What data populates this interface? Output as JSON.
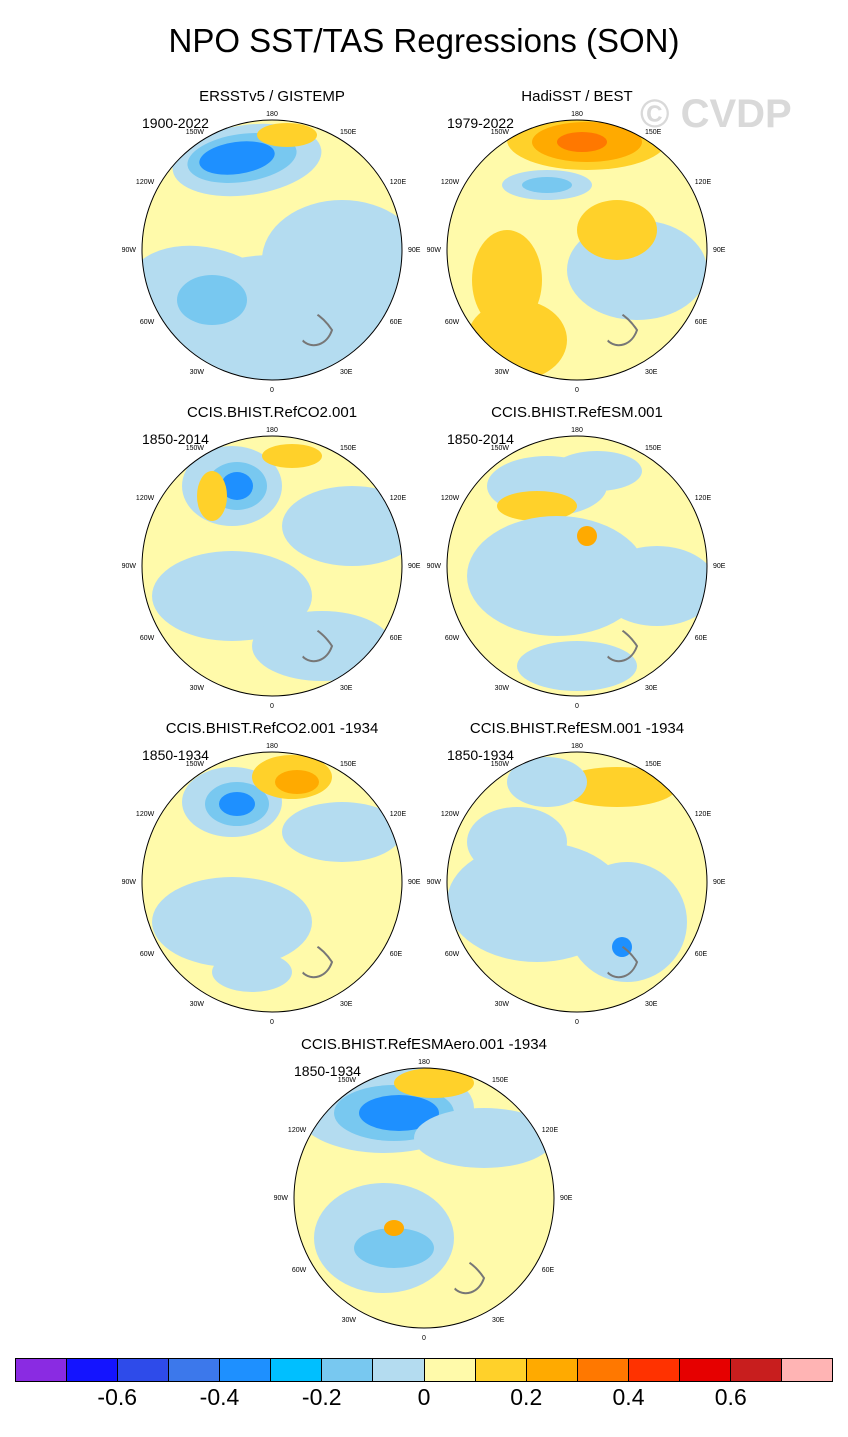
{
  "title": "NPO SST/TAS Regressions (SON)",
  "watermark": "© CVDP",
  "lon_labels": [
    "180",
    "150E",
    "120E",
    "90E",
    "60E",
    "30E",
    "0",
    "30W",
    "60W",
    "90W",
    "120W",
    "150W"
  ],
  "panels": [
    {
      "id": "p1",
      "title": "ERSSTv5 / GISTEMP",
      "years": "1900-2022",
      "pattern": "a"
    },
    {
      "id": "p2",
      "title": "HadiSST / BEST",
      "years": "1979-2022",
      "pattern": "b"
    },
    {
      "id": "p3",
      "title": "CCIS.BHIST.RefCO2.001",
      "years": "1850-2014",
      "pattern": "c"
    },
    {
      "id": "p4",
      "title": "CCIS.BHIST.RefESM.001",
      "years": "1850-2014",
      "pattern": "d"
    },
    {
      "id": "p5",
      "title": "CCIS.BHIST.RefCO2.001 -1934",
      "years": "1850-1934",
      "pattern": "e"
    },
    {
      "id": "p6",
      "title": "CCIS.BHIST.RefESM.001 -1934",
      "years": "1850-1934",
      "pattern": "f"
    },
    {
      "id": "p7",
      "title": "CCIS.BHIST.RefESMAero.001 -1934",
      "years": "1850-1934",
      "pattern": "g"
    }
  ],
  "colorbar": {
    "colors": [
      "#8a2be2",
      "#1414ff",
      "#2e4bea",
      "#3c78eb",
      "#1e90ff",
      "#00bfff",
      "#78c8f0",
      "#b4dcf0",
      "#fffaaa",
      "#ffd12a",
      "#ffaa00",
      "#ff7800",
      "#ff3200",
      "#e60000",
      "#c81e1e",
      "#ffb4b4"
    ],
    "labels": [
      "-0.6",
      "-0.4",
      "-0.2",
      "0",
      "0.2",
      "0.4",
      "0.6"
    ]
  },
  "colors": {
    "ocean_yellow": "#fffaaa",
    "light_blue": "#b4dcf0",
    "mid_blue": "#78c8f0",
    "blue": "#1e90ff",
    "deep_blue": "#3c78eb",
    "orange": "#ffd12a",
    "dark_orange": "#ffaa00",
    "red_orange": "#ff7800",
    "coast": "#777777"
  }
}
